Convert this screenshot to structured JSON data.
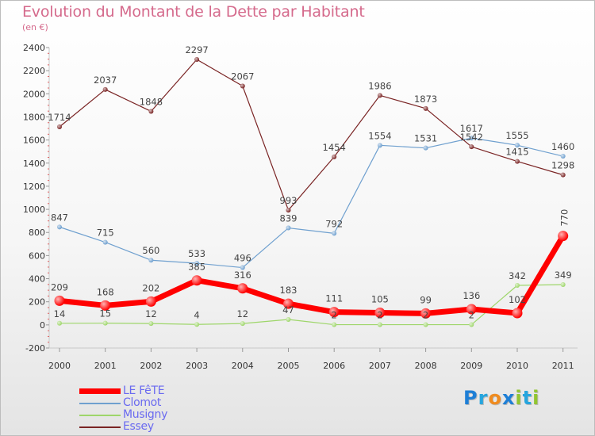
{
  "title": "Evolution du Montant de la Dette par Habitant",
  "subtitle": "(en €)",
  "logo": {
    "text": "Proxiti",
    "letters": [
      {
        "ch": "P",
        "color": "#1e7fd6"
      },
      {
        "ch": "r",
        "color": "#26a5de"
      },
      {
        "ch": "o",
        "color": "#ef8b1f"
      },
      {
        "ch": "x",
        "color": "#1e7fd6"
      },
      {
        "ch": "i",
        "color": "#92c531"
      },
      {
        "ch": "t",
        "color": "#26a5de"
      },
      {
        "ch": "i",
        "color": "#92c531"
      }
    ]
  },
  "chart_data": {
    "type": "line",
    "x": [
      "2000",
      "2001",
      "2002",
      "2003",
      "2004",
      "2005",
      "2006",
      "2007",
      "2008",
      "2009",
      "2010",
      "2011"
    ],
    "ylim": [
      -200,
      2400
    ],
    "yticks": [
      "-200",
      "0",
      "200",
      "400",
      "600",
      "800",
      "1000",
      "1200",
      "1400",
      "1600",
      "1800",
      "2000",
      "2200",
      "2400"
    ],
    "grid": false,
    "legend_position": "bottom-left",
    "series": [
      {
        "name": "Essey",
        "color": "#7a2424",
        "values": [
          1714,
          2037,
          1848,
          2297,
          2067,
          993,
          1454,
          1986,
          1873,
          1542,
          1415,
          1298
        ],
        "labels": [
          "1714",
          "2037",
          "1848",
          "2297",
          "2067",
          "993",
          "1454",
          "1986",
          "1873",
          "1542",
          "1415",
          "1298"
        ]
      },
      {
        "name": "Clomot",
        "color": "#6fa0cf",
        "values": [
          847,
          715,
          560,
          533,
          496,
          839,
          792,
          1554,
          1531,
          1617,
          1555,
          1460
        ],
        "labels": [
          "847",
          "715",
          "560",
          "533",
          "496",
          "839",
          "792",
          "1554",
          "1531",
          "1617",
          "1555",
          "1460"
        ]
      },
      {
        "name": "Musigny",
        "color": "#9ed66a",
        "values": [
          14,
          15,
          12,
          4,
          12,
          47,
          2,
          2,
          2,
          2,
          342,
          349
        ],
        "labels": [
          "14",
          "15",
          "12",
          "4",
          "12",
          "47",
          "2",
          "2",
          "2",
          "2",
          "342",
          "349"
        ]
      },
      {
        "name": "LE FêTE",
        "color": "#ff0000",
        "values": [
          209,
          168,
          202,
          385,
          316,
          183,
          111,
          105,
          99,
          136,
          102,
          770
        ],
        "labels": [
          "209",
          "168",
          "202",
          "385",
          "316",
          "183",
          "111",
          "105",
          "99",
          "136",
          "102",
          "770"
        ]
      }
    ],
    "legend_order": [
      "LE FêTE",
      "Clomot",
      "Musigny",
      "Essey"
    ]
  }
}
